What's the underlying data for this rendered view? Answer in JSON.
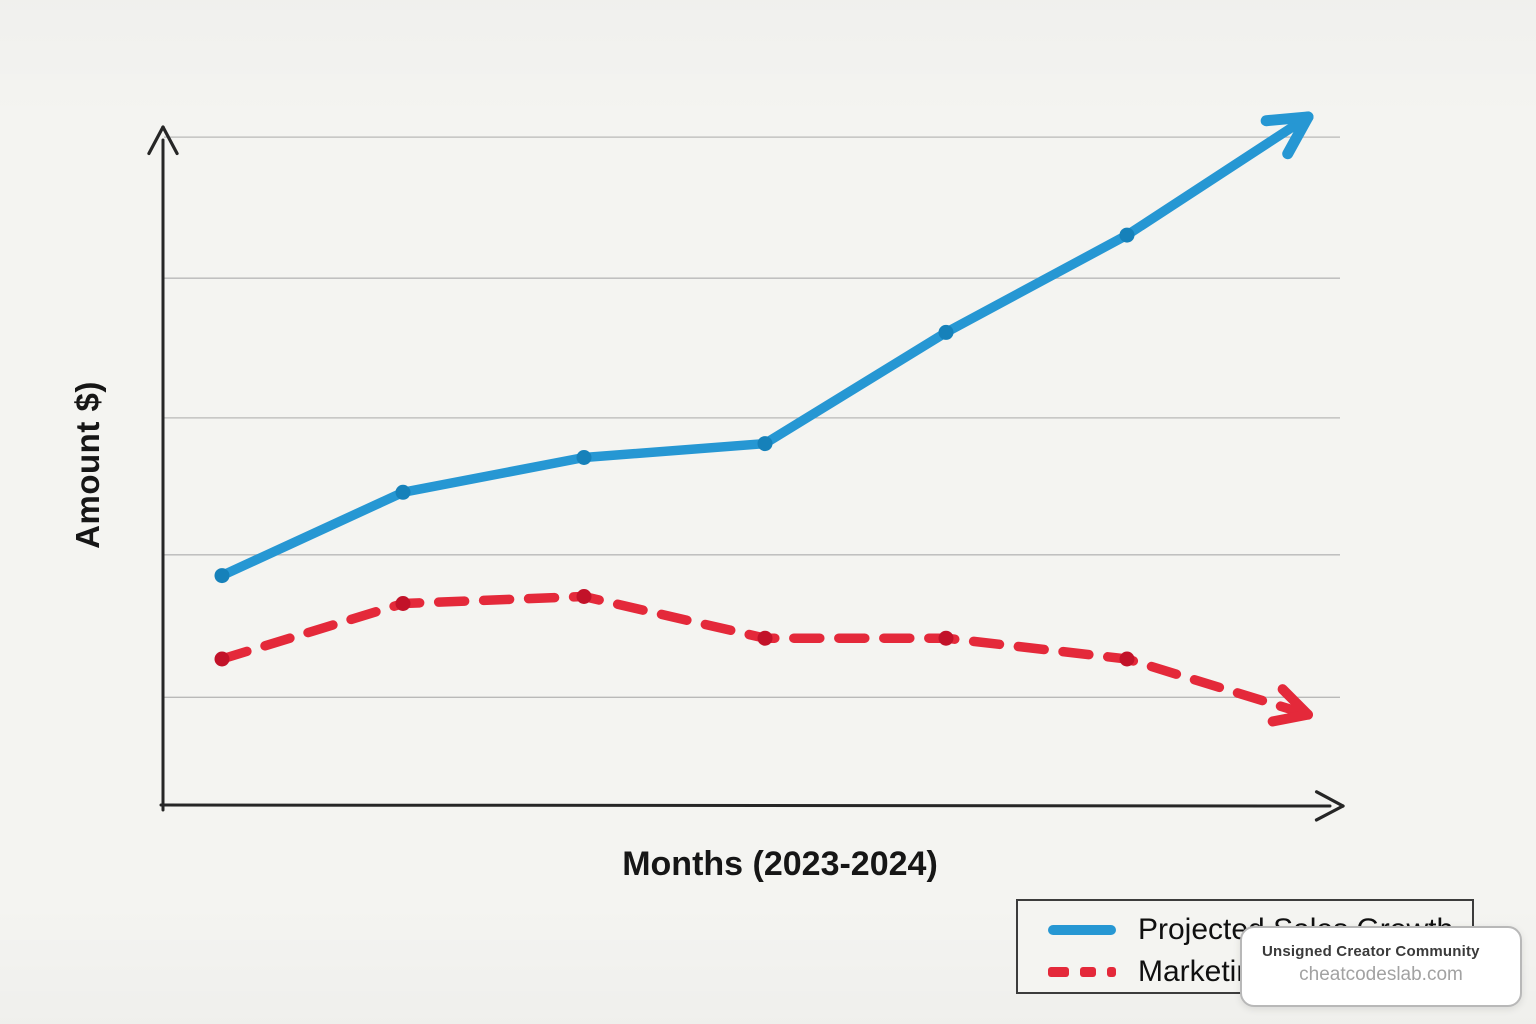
{
  "page": {
    "background_color": "#f4f4f1"
  },
  "chart_data": {
    "type": "line",
    "title": "",
    "xlabel": "Months (2023-2024)",
    "ylabel": "Amount $)",
    "x": [
      1,
      2,
      3,
      4,
      5,
      6
    ],
    "x_tick_labels_visible": false,
    "y_tick_labels_visible": false,
    "ylim": [
      0,
      105
    ],
    "grid": "horizontal",
    "gridline_values": [
      15.5,
      36,
      55.7,
      75.8,
      96.1
    ],
    "legend_position": "bottom-right",
    "axis_color": "#262626",
    "grid_color": "#a6a6a6",
    "series": [
      {
        "name": "Projected Sales Growth",
        "style": "solid",
        "color": "#2697d3",
        "marker_color": "#1681ba",
        "values": [
          33,
          45,
          50,
          52,
          68,
          82
        ],
        "arrow_end_value": 99
      },
      {
        "name": "Marketing",
        "style": "dashed",
        "color": "#e4293a",
        "marker_color": "#c21229",
        "values": [
          21,
          29,
          30,
          24,
          24,
          21
        ],
        "arrow_end_value": 13
      }
    ]
  },
  "labels": {
    "y_axis": "Amount $)",
    "x_axis": "Months (2023-2024)"
  },
  "legend": {
    "items": [
      {
        "label": "Projected Sales Growth"
      },
      {
        "label": "Marketing"
      }
    ]
  },
  "watermark": {
    "title": "Unsigned Creator Community",
    "site": "cheatcodeslab.com"
  }
}
